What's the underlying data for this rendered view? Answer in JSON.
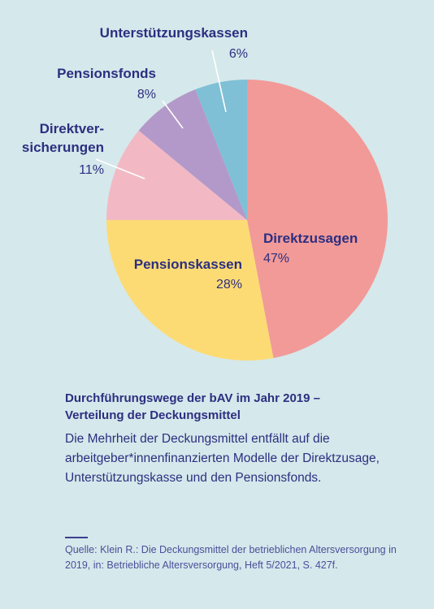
{
  "chart_data": {
    "type": "pie",
    "slices": [
      {
        "name": "Direktzusagen",
        "label_lines": [
          "Direktzusagen"
        ],
        "value": 47,
        "value_label": "47%",
        "color": "#f29a98"
      },
      {
        "name": "Pensionskassen",
        "label_lines": [
          "Pensionskassen"
        ],
        "value": 28,
        "value_label": "28%",
        "color": "#fddb74"
      },
      {
        "name": "Direktversicherungen",
        "label_lines": [
          "Direktver-",
          "sicherungen"
        ],
        "value": 11,
        "value_label": "11%",
        "color": "#f2b9c4"
      },
      {
        "name": "Pensionsfonds",
        "label_lines": [
          "Pensionsfonds"
        ],
        "value": 8,
        "value_label": "8%",
        "color": "#b399c9"
      },
      {
        "name": "Unterstützungskassen",
        "label_lines": [
          "Unterstützungskassen"
        ],
        "value": 6,
        "value_label": "6%",
        "color": "#7fc0d6"
      }
    ],
    "start_angle": "12 o'clock",
    "direction": "clockwise",
    "legend": "none"
  },
  "caption": {
    "title_line1": "Durchführungswege der bAV im Jahr 2019 –",
    "title_line2": "Verteilung der Deckungsmittel",
    "text": "Die Mehrheit der Deckungsmittel entfällt auf die arbeitgeber*innenfinanzierten Modelle der Direkt­zusage, Unterstützungskasse und den Pensionsfonds."
  },
  "source": {
    "text": "Quelle: Klein R.: Die Deckungsmittel der betrieblichen Altersver­sorgung in 2019, in: Betriebliche Altersversorgung, Heft 5/2021, S. 427f."
  },
  "colors": {
    "background": "#d5e8eb",
    "text": "#2c2f80",
    "leader_lines": "#ffffff"
  }
}
